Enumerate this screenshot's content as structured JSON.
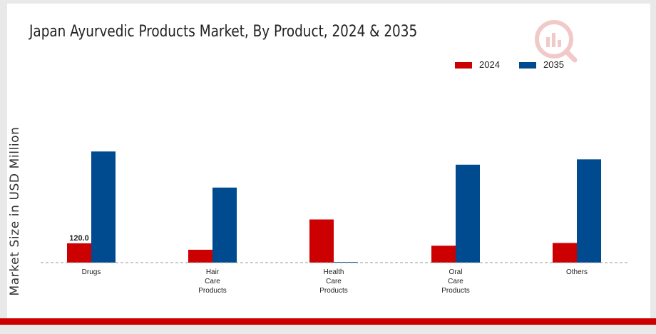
{
  "chart_data": {
    "type": "bar",
    "title": "Japan Ayurvedic Products Market, By Product, 2024 & 2035",
    "ylabel": "Market Size in USD Million",
    "xlabel": "",
    "categories": [
      "Drugs",
      "Hair Care Products",
      "Health Care Products",
      "Oral Care Products",
      "Others"
    ],
    "category_lines": [
      [
        "Drugs"
      ],
      [
        "Hair",
        "Care",
        "Products"
      ],
      [
        "Health",
        "Care",
        "Products"
      ],
      [
        "Oral",
        "Care",
        "Products"
      ],
      [
        "Others"
      ]
    ],
    "series": [
      {
        "name": "2024",
        "color": "#cc0000",
        "values": [
          120.0,
          80,
          268,
          105,
          122
        ]
      },
      {
        "name": "2035",
        "color": "#004a8f",
        "values": [
          690,
          466,
          2,
          608,
          641
        ]
      }
    ],
    "data_labels": [
      {
        "series": 0,
        "index": 0,
        "text": "120.0"
      }
    ],
    "ylim": [
      0,
      700
    ],
    "grid": false,
    "legend_position": "top-right"
  },
  "colors": {
    "brand_red": "#cc0000",
    "brand_blue": "#004a8f"
  },
  "logo_icon": "market-research-logo-icon"
}
